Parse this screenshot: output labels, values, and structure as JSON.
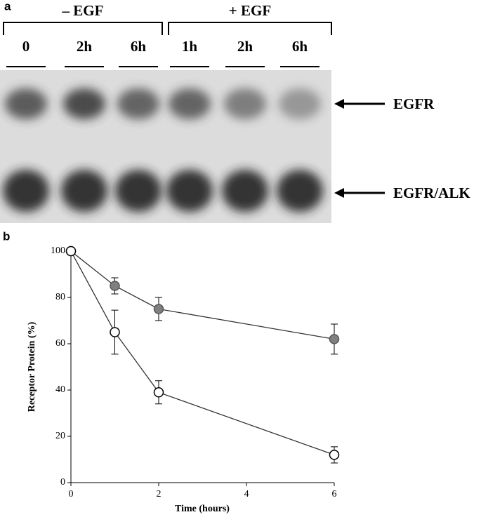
{
  "panel_a": {
    "label": "a",
    "groups": [
      "– EGF",
      "+ EGF"
    ],
    "lanes": [
      "0",
      "2h",
      "6h",
      "1h",
      "2h",
      "6h"
    ],
    "rows": [
      "EGFR",
      "EGFR/ALK"
    ]
  },
  "chart_data": {
    "type": "line",
    "panel_label": "b",
    "y_label": "Receptor Protein (%)",
    "x_label": "Time (hours)",
    "x": [
      0,
      1,
      2,
      6
    ],
    "xlim": [
      0,
      6
    ],
    "xticks": [
      0,
      2,
      4,
      6
    ],
    "ylim": [
      0,
      100
    ],
    "yticks": [
      0,
      20,
      40,
      60,
      80,
      100
    ],
    "series": [
      {
        "color": "#808080",
        "values": [
          100,
          85,
          75,
          62
        ],
        "errors": [
          null,
          3.5,
          5,
          6.5
        ]
      },
      {
        "color": "#ffffff",
        "values": [
          100,
          65,
          39,
          12
        ],
        "errors": [
          null,
          9.5,
          5,
          3.5
        ]
      }
    ]
  }
}
